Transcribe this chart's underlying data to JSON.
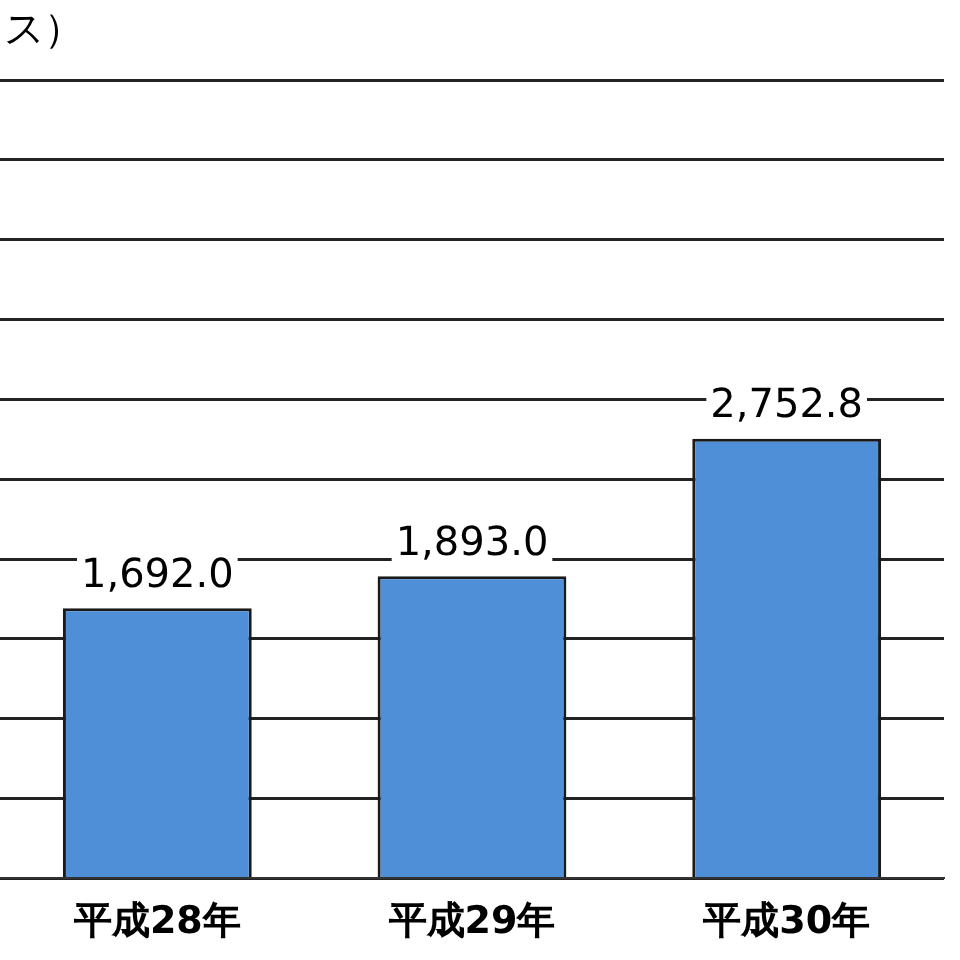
{
  "chart_data": {
    "type": "bar",
    "ylabel": "ス）",
    "categories": [
      "平成28年",
      "平成29年",
      "平成30年"
    ],
    "values": [
      1692.0,
      1893.0,
      2752.8
    ],
    "value_labels": [
      "1,692.0",
      "1,893.0",
      "2,752.8"
    ],
    "color": "#4f8fd8",
    "ylim": [
      0,
      5000
    ],
    "yticks": [
      {
        "value": 0,
        "label": null
      },
      {
        "value": 500,
        "label": null
      },
      {
        "value": 1000,
        "label": null
      },
      {
        "value": 1500,
        "label": null
      },
      {
        "value": 2000,
        "label": null
      },
      {
        "value": 2500,
        "label": null
      },
      {
        "value": 3000,
        "label": null
      },
      {
        "value": 3500,
        "label": null
      },
      {
        "value": 4000,
        "label": null
      },
      {
        "value": 4500,
        "label": null
      },
      {
        "value": 5000,
        "label": null
      }
    ],
    "grid": "y",
    "legend": false
  }
}
